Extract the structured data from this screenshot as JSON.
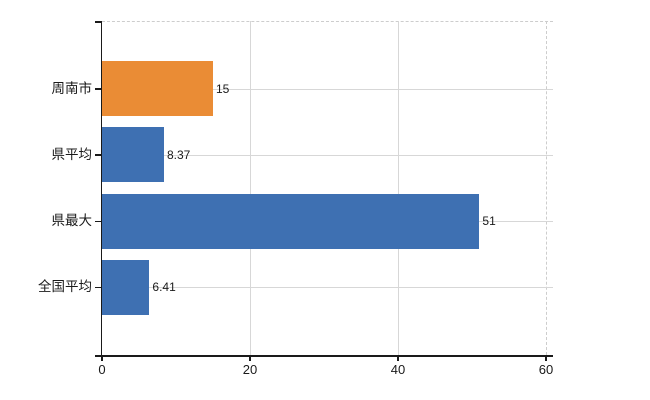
{
  "chart_data": {
    "type": "bar",
    "orientation": "horizontal",
    "title": "",
    "xlabel": "",
    "ylabel": "",
    "categories": [
      "周南市",
      "県平均",
      "県最大",
      "全国平均"
    ],
    "values": [
      15,
      8.37,
      51,
      6.41
    ],
    "value_labels": [
      "15",
      "8.37",
      "51",
      "6.41"
    ],
    "series_colors": [
      "#ea8c35",
      "#3e70b2",
      "#3e70b2",
      "#3e70b2"
    ],
    "x_ticks": [
      0,
      20,
      40,
      60
    ],
    "x_tick_labels": [
      "0",
      "20",
      "40",
      "60"
    ],
    "xlim": [
      0,
      60
    ],
    "grid": true,
    "gridline_color": "#d7d7d7",
    "dashed_border_color": "#cdcdcd",
    "axis_color": "#1a1a1a",
    "legend": null
  }
}
